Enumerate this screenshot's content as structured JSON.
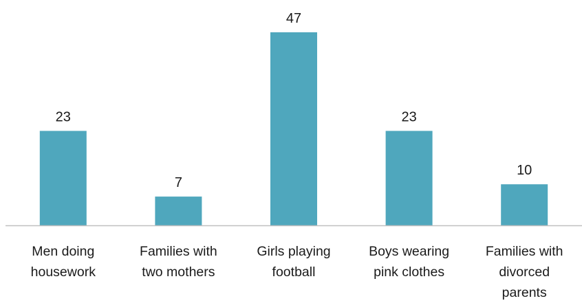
{
  "chart_data": {
    "type": "bar",
    "categories": [
      [
        "Men doing",
        "housework"
      ],
      [
        "Families with",
        "two mothers"
      ],
      [
        "Girls playing",
        "football"
      ],
      [
        "Boys wearing",
        "pink clothes"
      ],
      [
        "Families with",
        "divorced",
        "parents"
      ]
    ],
    "values": [
      23,
      7,
      47,
      23,
      10
    ],
    "data_labels": [
      "23",
      "7",
      "47",
      "23",
      "10"
    ],
    "title": "",
    "xlabel": "",
    "ylabel": "",
    "ylim": [
      0,
      47
    ],
    "grid": false,
    "legend": "none",
    "bar_color": "#4fa7bd",
    "axis_color": "#bfbfbf"
  }
}
